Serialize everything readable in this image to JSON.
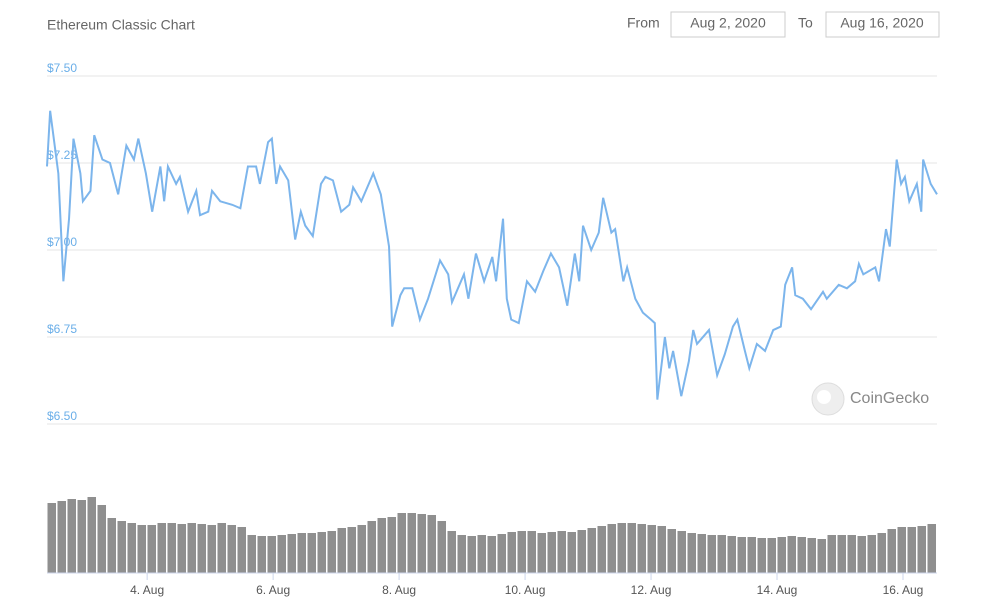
{
  "header": {
    "title": "Ethereum Classic Chart",
    "from_label": "From",
    "from_date": "Aug 2, 2020",
    "to_label": "To",
    "to_date": "Aug 16, 2020",
    "watermark": "CoinGecko"
  },
  "chart_data": [
    {
      "type": "line",
      "color": "#7cb5ec",
      "x": [
        2.41,
        2.46,
        2.59,
        2.67,
        2.76,
        2.83,
        2.94,
        2.98,
        3.1,
        3.16,
        3.29,
        3.41,
        3.54,
        3.67,
        3.79,
        3.86,
        3.98,
        4.08,
        4.21,
        4.27,
        4.33,
        4.46,
        4.52,
        4.65,
        4.78,
        4.84,
        4.97,
        5.03,
        5.16,
        5.35,
        5.48,
        5.6,
        5.73,
        5.79,
        5.92,
        5.98,
        6.05,
        6.11,
        6.24,
        6.35,
        6.44,
        6.51,
        6.63,
        6.76,
        6.83,
        6.95,
        7.08,
        7.21,
        7.27,
        7.4,
        7.59,
        7.71,
        7.84,
        7.89,
        8.02,
        8.08,
        8.21,
        8.33,
        8.46,
        8.65,
        8.78,
        8.84,
        9.03,
        9.1,
        9.22,
        9.35,
        9.48,
        9.54,
        9.65,
        9.71,
        9.78,
        9.9,
        10.03,
        10.16,
        10.29,
        10.41,
        10.54,
        10.67,
        10.79,
        10.86,
        10.92,
        11.05,
        11.17,
        11.24,
        11.37,
        11.43,
        11.56,
        11.62,
        11.75,
        11.87,
        12.0,
        12.06,
        12.1,
        12.22,
        12.29,
        12.35,
        12.48,
        12.6,
        12.67,
        12.73,
        12.92,
        13.05,
        13.17,
        13.3,
        13.37,
        13.49,
        13.56,
        13.68,
        13.81,
        13.94,
        14.06,
        14.13,
        14.24,
        14.29,
        14.41,
        14.54,
        14.73,
        14.79,
        14.98,
        15.11,
        15.24,
        15.3,
        15.37,
        15.56,
        15.62,
        15.73,
        15.79,
        15.9,
        15.97,
        16.03,
        16.1,
        16.22,
        16.29,
        16.32,
        16.44,
        16.54
      ],
      "values": [
        7.24,
        7.4,
        7.22,
        6.91,
        7.09,
        7.32,
        7.22,
        7.14,
        7.17,
        7.33,
        7.26,
        7.25,
        7.16,
        7.3,
        7.26,
        7.32,
        7.22,
        7.11,
        7.24,
        7.14,
        7.24,
        7.19,
        7.21,
        7.11,
        7.17,
        7.1,
        7.11,
        7.17,
        7.14,
        7.13,
        7.12,
        7.24,
        7.24,
        7.19,
        7.31,
        7.32,
        7.19,
        7.24,
        7.2,
        7.03,
        7.11,
        7.07,
        7.04,
        7.19,
        7.21,
        7.2,
        7.11,
        7.13,
        7.18,
        7.14,
        7.22,
        7.16,
        7.01,
        6.78,
        6.87,
        6.89,
        6.89,
        6.8,
        6.86,
        6.97,
        6.93,
        6.85,
        6.93,
        6.86,
        6.99,
        6.91,
        6.98,
        6.91,
        7.09,
        6.86,
        6.8,
        6.79,
        6.91,
        6.88,
        6.94,
        6.99,
        6.95,
        6.84,
        6.99,
        6.91,
        7.07,
        7.0,
        7.05,
        7.15,
        7.05,
        7.06,
        6.91,
        6.95,
        6.86,
        6.82,
        6.8,
        6.79,
        6.57,
        6.75,
        6.66,
        6.71,
        6.58,
        6.68,
        6.77,
        6.73,
        6.77,
        6.64,
        6.7,
        6.78,
        6.8,
        6.71,
        6.66,
        6.73,
        6.71,
        6.77,
        6.78,
        6.9,
        6.95,
        6.87,
        6.86,
        6.83,
        6.88,
        6.86,
        6.9,
        6.89,
        6.91,
        6.96,
        6.93,
        6.95,
        6.91,
        7.06,
        7.01,
        7.26,
        7.19,
        7.21,
        7.14,
        7.19,
        7.11,
        7.26,
        7.19,
        7.16
      ],
      "xlim": [
        2.41,
        16.54
      ],
      "xticks": [
        {
          "value": 4,
          "label": "4. Aug"
        },
        {
          "value": 6,
          "label": "6. Aug"
        },
        {
          "value": 8,
          "label": "8. Aug"
        },
        {
          "value": 10,
          "label": "10. Aug"
        },
        {
          "value": 12,
          "label": "12. Aug"
        },
        {
          "value": 14,
          "label": "14. Aug"
        },
        {
          "value": 16,
          "label": "16. Aug"
        }
      ],
      "ylim": [
        6.5,
        7.5
      ],
      "yticks": [
        {
          "value": 7.5,
          "label": "$7.50"
        },
        {
          "value": 7.25,
          "label": "$7.25"
        },
        {
          "value": 7,
          "label": "$7.00"
        },
        {
          "value": 6.75,
          "label": "$6.75"
        },
        {
          "value": 6.5,
          "label": "$6.50"
        }
      ],
      "grid": true
    },
    {
      "type": "bar",
      "color": "#8f8f8f",
      "categories": [
        null,
        null,
        null,
        null,
        null,
        null,
        null,
        null,
        null,
        null,
        null,
        null,
        null,
        null,
        null,
        null,
        null,
        null,
        null,
        null,
        null,
        null,
        null,
        null,
        null,
        null,
        null,
        null,
        null,
        null,
        null,
        null,
        null,
        null,
        null,
        null,
        null,
        null,
        null,
        null,
        null,
        null,
        null,
        null,
        null,
        null,
        null,
        null,
        null,
        null,
        null,
        null,
        null,
        null,
        null,
        null,
        null,
        null,
        null,
        null,
        null,
        null,
        null,
        null,
        null,
        null,
        null,
        null,
        null,
        null,
        null,
        null,
        null,
        null,
        null,
        null,
        null,
        null,
        null,
        null,
        null,
        null,
        null,
        null,
        null,
        null,
        null,
        null,
        null
      ],
      "values": [
        70,
        72,
        74,
        73,
        76,
        68,
        55,
        52,
        50,
        48,
        48,
        50,
        50,
        49,
        50,
        49,
        48,
        50,
        48,
        46,
        38,
        37,
        37,
        38,
        39,
        40,
        40,
        41,
        42,
        45,
        46,
        48,
        52,
        55,
        56,
        60,
        60,
        59,
        58,
        52,
        42,
        38,
        37,
        38,
        37,
        39,
        41,
        42,
        42,
        40,
        41,
        42,
        41,
        43,
        45,
        47,
        49,
        50,
        50,
        49,
        48,
        47,
        44,
        42,
        40,
        39,
        38,
        38,
        37,
        36,
        36,
        35,
        35,
        36,
        37,
        36,
        35,
        34,
        38,
        38,
        38,
        37,
        38,
        40,
        44,
        46,
        46,
        47,
        49
      ],
      "ylim": [
        0,
        100
      ]
    }
  ]
}
